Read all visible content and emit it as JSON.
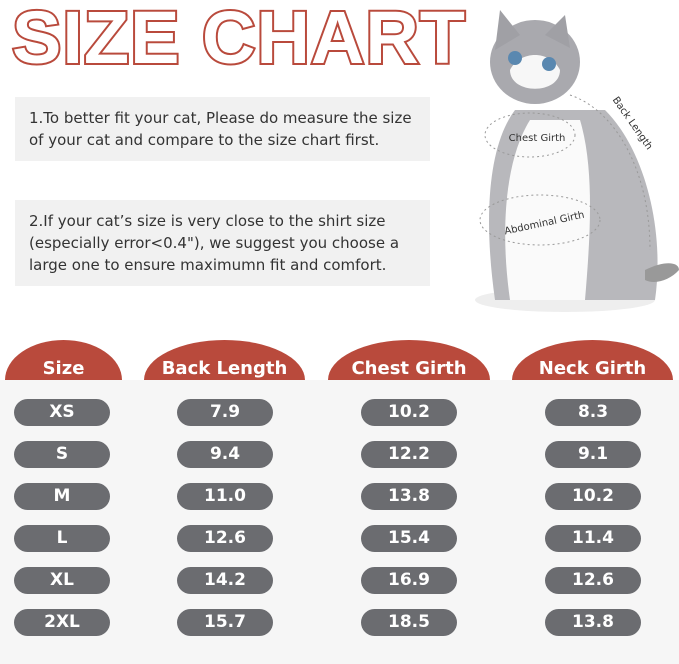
{
  "title": "SIZE CHART",
  "notes": [
    "1.To better fit your cat, Please do measure the size of your cat and compare to the size chart first.",
    "2.If your cat’s size is very close to the shirt size (especially error<0.4\"), we suggest you choose a large one to ensure maximumn fit and comfort."
  ],
  "cat_labels": {
    "chest": "Chest Girth",
    "abdominal": "Abdominal Girth",
    "back": "Back Length"
  },
  "colors": {
    "accent": "#b94a3c",
    "pill": "#6b6c70"
  },
  "table": {
    "headers": [
      "Size",
      "Back Length",
      "Chest Girth",
      "Neck Girth"
    ],
    "rows": [
      [
        "XS",
        "7.9",
        "10.2",
        "8.3"
      ],
      [
        "S",
        "9.4",
        "12.2",
        "9.1"
      ],
      [
        "M",
        "11.0",
        "13.8",
        "10.2"
      ],
      [
        "L",
        "12.6",
        "15.4",
        "11.4"
      ],
      [
        "XL",
        "14.2",
        "16.9",
        "12.6"
      ],
      [
        "2XL",
        "15.7",
        "18.5",
        "13.8"
      ]
    ]
  }
}
